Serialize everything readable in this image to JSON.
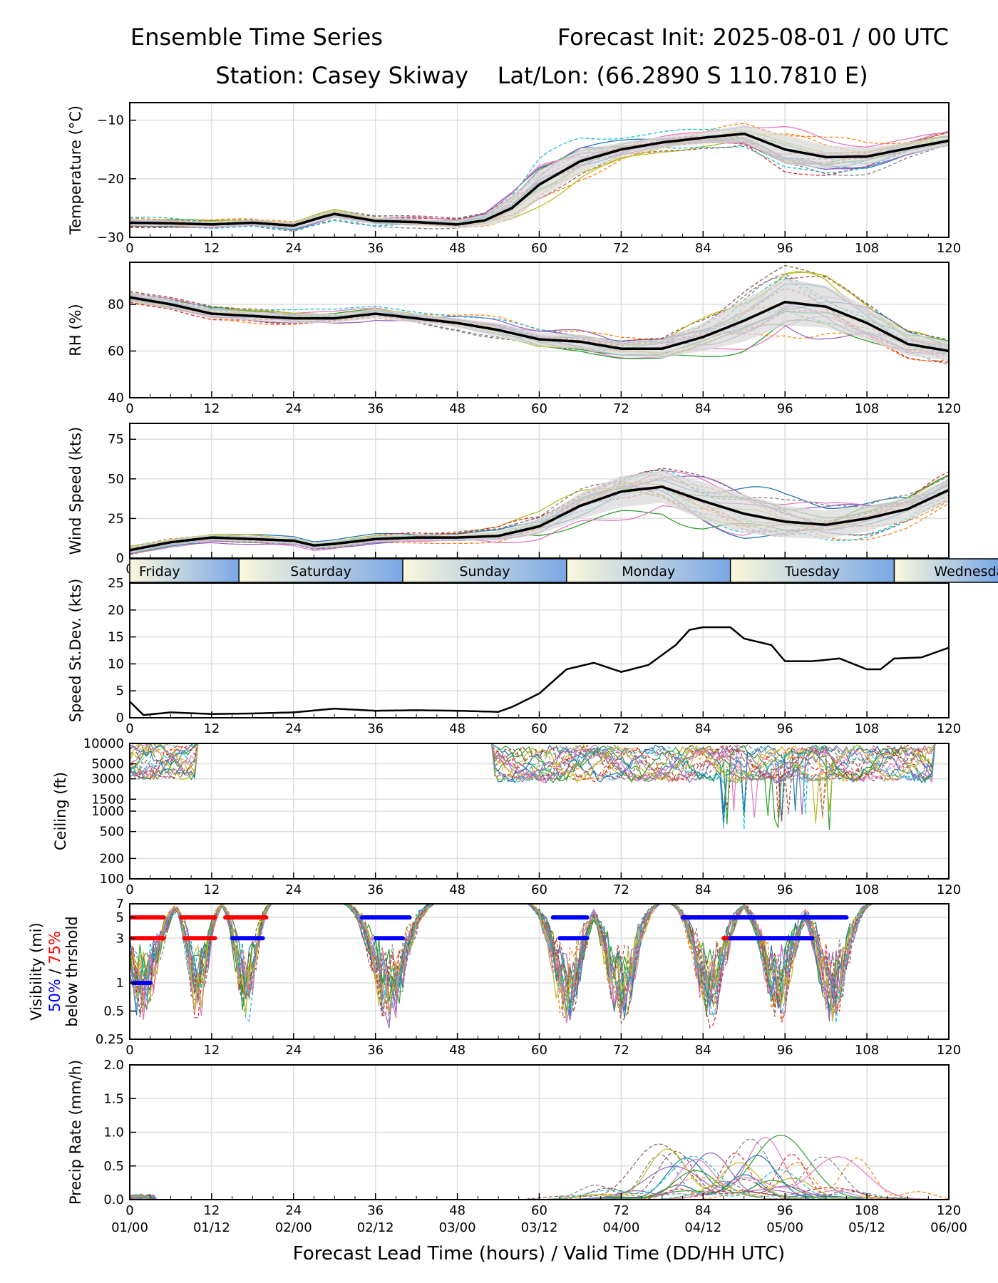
{
  "header": {
    "left_line1": "Ensemble Time Series",
    "right_line1": "Forecast Init: 2025-08-01 / 00 UTC",
    "line2": "Station: Casey Skiway    Lat/Lon: (66.2890 S 110.7810 E)"
  },
  "x_axis": {
    "label": "Forecast Lead Time (hours) / Valid Time (DD/HH UTC)",
    "lead_ticks": [
      "0",
      "12",
      "24",
      "36",
      "48",
      "60",
      "72",
      "84",
      "96",
      "108",
      "120"
    ],
    "valid_ticks": [
      "01/00",
      "01/12",
      "02/00",
      "02/12",
      "03/00",
      "03/12",
      "04/00",
      "04/12",
      "05/00",
      "05/12",
      "06/00"
    ]
  },
  "days_bar": [
    "Friday",
    "Saturday",
    "Sunday",
    "Monday",
    "Tuesday",
    "Wednesday"
  ],
  "colors": {
    "ensemble_mean": "#000000",
    "spread_band": "#d9d9d9",
    "vis_50": "#0000ff",
    "vis_75": "#ff0000",
    "day_start": "#fbf8dc",
    "day_end": "#7aa8e6",
    "grid": "#dddddd"
  },
  "chart_data": [
    {
      "type": "line",
      "id": "temperature",
      "ylabel": "Temperature (°C)",
      "ylim": [
        -30,
        -7
      ],
      "yticks": [
        "-30",
        "-20",
        "-10"
      ],
      "x": [
        0,
        6,
        12,
        18,
        24,
        28,
        30,
        36,
        42,
        48,
        52,
        56,
        60,
        66,
        72,
        78,
        84,
        90,
        96,
        102,
        108,
        114,
        120
      ],
      "series": [
        {
          "values": [
            -27.5,
            -27.6,
            -27.8,
            -27.5,
            -28.0,
            -26.6,
            -26.0,
            -27.2,
            -27.4,
            -27.8,
            -27.1,
            -25.0,
            -21.0,
            -17.0,
            -15.0,
            -13.8,
            -13.0,
            -12.3,
            -15.0,
            -16.3,
            -16.2,
            -14.8,
            -13.5
          ]
        }
      ],
      "band_halfwidth": [
        0.5,
        0.5,
        0.5,
        0.5,
        0.6,
        0.7,
        0.7,
        0.6,
        0.6,
        0.7,
        1.0,
        2.0,
        2.5,
        2.0,
        1.2,
        1.0,
        1.0,
        1.5,
        2.5,
        2.0,
        1.5,
        1.0,
        1.0
      ],
      "member_count": 20
    },
    {
      "type": "line",
      "id": "rh",
      "ylabel": "RH (%)",
      "ylim": [
        40,
        98
      ],
      "yticks": [
        "40",
        "60",
        "80"
      ],
      "x": [
        0,
        6,
        12,
        18,
        24,
        30,
        36,
        42,
        48,
        54,
        60,
        66,
        72,
        78,
        84,
        90,
        96,
        102,
        108,
        114,
        120
      ],
      "series": [
        {
          "values": [
            83,
            80,
            76,
            75,
            74,
            74,
            76,
            74,
            72,
            69,
            65,
            64,
            61,
            61,
            66,
            73,
            81,
            79,
            72,
            63,
            60
          ]
        }
      ],
      "band_halfwidth": [
        2,
        2,
        2,
        2,
        2,
        2,
        2,
        2,
        2,
        3,
        3,
        3,
        3,
        4,
        6,
        9,
        10,
        9,
        7,
        5,
        4
      ],
      "member_count": 20
    },
    {
      "type": "line",
      "id": "wind_speed",
      "ylabel": "Wind Speed (kts)",
      "ylim": [
        0,
        85
      ],
      "yticks": [
        "0",
        "25",
        "50",
        "75"
      ],
      "x": [
        0,
        6,
        12,
        18,
        24,
        27,
        30,
        36,
        42,
        48,
        54,
        60,
        66,
        72,
        78,
        84,
        90,
        96,
        102,
        108,
        114,
        120
      ],
      "series": [
        {
          "values": [
            5,
            10,
            13,
            12,
            11,
            8,
            9,
            12,
            13,
            13,
            14,
            20,
            33,
            42,
            45,
            36,
            28,
            23,
            21,
            25,
            31,
            43
          ]
        }
      ],
      "band_halfwidth": [
        2,
        2,
        2,
        2,
        2,
        2,
        2,
        2,
        2,
        2,
        3,
        5,
        8,
        10,
        10,
        12,
        12,
        10,
        9,
        8,
        7,
        7
      ],
      "member_count": 20
    },
    {
      "type": "line",
      "id": "speed_stdev",
      "ylabel": "Speed St.Dev. (kts)",
      "ylim": [
        0,
        25
      ],
      "yticks": [
        "0",
        "5",
        "10",
        "15",
        "20",
        "25"
      ],
      "x": [
        0,
        2,
        6,
        12,
        18,
        24,
        30,
        36,
        42,
        48,
        54,
        56,
        60,
        64,
        68,
        72,
        76,
        80,
        82,
        84,
        88,
        90,
        94,
        96,
        100,
        104,
        108,
        110,
        112,
        116,
        120
      ],
      "series": [
        {
          "values": [
            3,
            0.5,
            1,
            0.7,
            0.8,
            1.0,
            1.7,
            1.3,
            1.4,
            1.3,
            1.1,
            2.0,
            4.5,
            9.0,
            10.2,
            8.5,
            9.8,
            13.5,
            16.3,
            16.8,
            16.8,
            14.7,
            13.5,
            10.5,
            10.5,
            11.0,
            9.0,
            9.0,
            11.0,
            11.2,
            13.0
          ]
        }
      ]
    },
    {
      "type": "line",
      "id": "ceiling",
      "ylabel": "Ceiling (ft)",
      "scale": "log",
      "ylim": [
        100,
        10000
      ],
      "yticks": [
        "100",
        "200",
        "500",
        "1000",
        "1500",
        "3000",
        "5000",
        "10000"
      ],
      "member_count": 20
    },
    {
      "type": "line",
      "id": "visibility",
      "ylabel_line1": "Visibility (mi)",
      "ylabel_50": "50%",
      "ylabel_sep": " / ",
      "ylabel_75": "75%",
      "ylabel_line3": "below thrshold",
      "scale": "log",
      "ylim": [
        0.25,
        7
      ],
      "yticks": [
        "0.25",
        "0.5",
        "1",
        "3",
        "5",
        "7"
      ],
      "threshold_bars": [
        {
          "level": 5,
          "pct": 75,
          "ranges": [
            [
              0,
              5
            ],
            [
              7.5,
              12.5
            ],
            [
              14,
              20
            ],
            [
              81,
              105
            ]
          ]
        },
        {
          "level": 5,
          "pct": 50,
          "ranges": [
            [
              34,
              41
            ],
            [
              62,
              67
            ],
            [
              81,
              105
            ]
          ]
        },
        {
          "level": 3,
          "pct": 75,
          "ranges": [
            [
              0,
              5
            ],
            [
              8,
              12.5
            ],
            [
              87,
              100
            ]
          ]
        },
        {
          "level": 3,
          "pct": 50,
          "ranges": [
            [
              15,
              19.5
            ],
            [
              36,
              40
            ],
            [
              63,
              67
            ],
            [
              88,
              100
            ]
          ]
        },
        {
          "level": 1,
          "pct": 50,
          "ranges": [
            [
              0.5,
              3
            ]
          ]
        }
      ],
      "member_count": 20
    },
    {
      "type": "line",
      "id": "precip",
      "ylabel": "Precip Rate (mm/h)",
      "ylim": [
        0,
        2.0
      ],
      "yticks": [
        "0.0",
        "0.5",
        "1.0",
        "1.5",
        "2.0"
      ],
      "member_count": 20
    }
  ]
}
